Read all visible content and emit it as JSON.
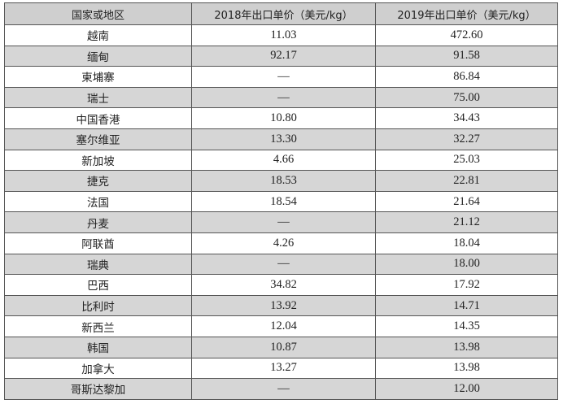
{
  "table": {
    "headers": [
      "国家或地区",
      "2018年出口单价（美元/kg）",
      "2019年出口单价（美元/kg）"
    ],
    "rows": [
      {
        "region": "越南",
        "y2018": "11.03",
        "y2019": "472.60"
      },
      {
        "region": "缅甸",
        "y2018": "92.17",
        "y2019": "91.58"
      },
      {
        "region": "柬埔寨",
        "y2018": "—",
        "y2019": "86.84"
      },
      {
        "region": "瑞士",
        "y2018": "—",
        "y2019": "75.00"
      },
      {
        "region": "中国香港",
        "y2018": "10.80",
        "y2019": "34.43"
      },
      {
        "region": "塞尔维亚",
        "y2018": "13.30",
        "y2019": "32.27"
      },
      {
        "region": "新加坡",
        "y2018": "4.66",
        "y2019": "25.03"
      },
      {
        "region": "捷克",
        "y2018": "18.53",
        "y2019": "22.81"
      },
      {
        "region": "法国",
        "y2018": "18.54",
        "y2019": "21.64"
      },
      {
        "region": "丹麦",
        "y2018": "—",
        "y2019": "21.12"
      },
      {
        "region": "阿联酋",
        "y2018": "4.26",
        "y2019": "18.04"
      },
      {
        "region": "瑞典",
        "y2018": "—",
        "y2019": "18.00"
      },
      {
        "region": "巴西",
        "y2018": "34.82",
        "y2019": "17.92"
      },
      {
        "region": "比利时",
        "y2018": "13.92",
        "y2019": "14.71"
      },
      {
        "region": "新西兰",
        "y2018": "12.04",
        "y2019": "14.35"
      },
      {
        "region": "韩国",
        "y2018": "10.87",
        "y2019": "13.98"
      },
      {
        "region": "加拿大",
        "y2018": "13.27",
        "y2019": "13.98"
      },
      {
        "region": "哥斯达黎加",
        "y2018": "—",
        "y2019": "12.00"
      }
    ]
  }
}
